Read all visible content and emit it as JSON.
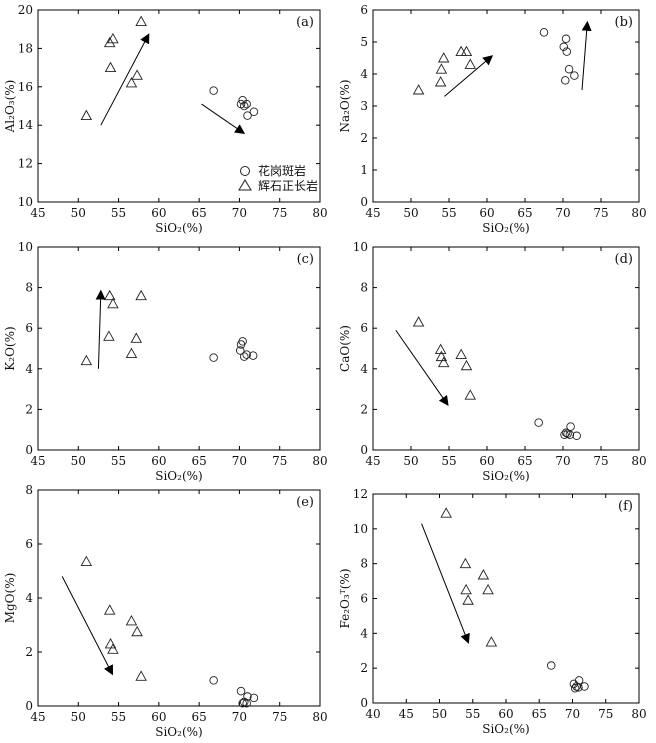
{
  "figure": {
    "legend": {
      "granite_label": "花岗斑岩",
      "syenite_label": "辉石正长岩"
    }
  },
  "chart_data": [
    {
      "type": "scatter",
      "panel_label": "(a)",
      "xlabel": "SiO₂(%)",
      "ylabel": "Al₂O₃(%)",
      "xlim": [
        45,
        80
      ],
      "ylim": [
        10,
        20
      ],
      "xticks": [
        "45",
        "50",
        "55",
        "60",
        "65",
        "70",
        "75",
        "80"
      ],
      "yticks": [
        "10",
        "12",
        "14",
        "16",
        "18",
        "20"
      ],
      "legend_position": "bottom-right",
      "series": [
        {
          "name": "花岗斑岩",
          "marker": "circle",
          "x": [
            66.8,
            70.2,
            70.4,
            70.6,
            70.9,
            71.0,
            71.8
          ],
          "y": [
            15.8,
            15.1,
            15.3,
            15.0,
            15.1,
            14.5,
            14.7
          ]
        },
        {
          "name": "辉石正长岩",
          "marker": "triangle",
          "x": [
            51.0,
            53.9,
            54.0,
            54.3,
            56.6,
            57.3,
            57.8
          ],
          "y": [
            14.5,
            18.3,
            17.0,
            18.5,
            16.2,
            16.6,
            19.4
          ]
        }
      ],
      "arrows": [
        {
          "from": [
            52.8,
            14.0
          ],
          "to": [
            58.7,
            18.7
          ]
        },
        {
          "from": [
            65.3,
            15.1
          ],
          "to": [
            70.5,
            13.6
          ]
        }
      ]
    },
    {
      "type": "scatter",
      "panel_label": "(b)",
      "xlabel": "SiO₂(%)",
      "ylabel": "Na₂O(%)",
      "xlim": [
        45,
        80
      ],
      "ylim": [
        0,
        6
      ],
      "xticks": [
        "45",
        "50",
        "55",
        "60",
        "65",
        "70",
        "75",
        "80"
      ],
      "yticks": [
        "0",
        "1",
        "2",
        "3",
        "4",
        "5",
        "6"
      ],
      "series": [
        {
          "name": "花岗斑岩",
          "marker": "circle",
          "x": [
            67.5,
            70.1,
            70.4,
            70.5,
            70.3,
            70.8,
            71.5
          ],
          "y": [
            5.3,
            4.85,
            5.1,
            4.7,
            3.8,
            4.15,
            3.95
          ]
        },
        {
          "name": "辉石正长岩",
          "marker": "triangle",
          "x": [
            51.0,
            53.9,
            54.0,
            54.3,
            56.6,
            57.3,
            57.8
          ],
          "y": [
            3.5,
            3.75,
            4.15,
            4.5,
            4.7,
            4.7,
            4.3
          ]
        }
      ],
      "arrows": [
        {
          "from": [
            54.4,
            3.3
          ],
          "to": [
            60.6,
            4.55
          ]
        },
        {
          "from": [
            72.5,
            3.5
          ],
          "to": [
            73.2,
            5.6
          ]
        }
      ]
    },
    {
      "type": "scatter",
      "panel_label": "(c)",
      "xlabel": "SiO₂(%)",
      "ylabel": "K₂O(%)",
      "xlim": [
        45,
        80
      ],
      "ylim": [
        0,
        10
      ],
      "xticks": [
        "45",
        "50",
        "55",
        "60",
        "65",
        "70",
        "75",
        "80"
      ],
      "yticks": [
        "0",
        "2",
        "4",
        "6",
        "8",
        "10"
      ],
      "series": [
        {
          "name": "花岗斑岩",
          "marker": "circle",
          "x": [
            66.8,
            70.1,
            70.2,
            70.4,
            70.6,
            70.9,
            71.7
          ],
          "y": [
            4.55,
            4.9,
            5.2,
            5.35,
            4.6,
            4.7,
            4.65
          ]
        },
        {
          "name": "辉石正长岩",
          "marker": "triangle",
          "x": [
            51.0,
            53.8,
            53.9,
            54.3,
            56.6,
            57.2,
            57.8
          ],
          "y": [
            4.4,
            5.6,
            7.6,
            7.2,
            4.75,
            5.5,
            7.6
          ]
        }
      ],
      "arrows": [
        {
          "from": [
            52.5,
            4.0
          ],
          "to": [
            52.8,
            7.8
          ]
        }
      ]
    },
    {
      "type": "scatter",
      "panel_label": "(d)",
      "xlabel": "SiO₂(%)",
      "ylabel": "CaO(%)",
      "xlim": [
        45,
        80
      ],
      "ylim": [
        0,
        10
      ],
      "xticks": [
        "45",
        "50",
        "55",
        "60",
        "65",
        "70",
        "75",
        "80"
      ],
      "yticks": [
        "0",
        "2",
        "4",
        "6",
        "8",
        "10"
      ],
      "series": [
        {
          "name": "花岗斑岩",
          "marker": "circle",
          "x": [
            66.8,
            70.2,
            70.4,
            70.6,
            70.9,
            71.0,
            71.8
          ],
          "y": [
            1.35,
            0.75,
            0.85,
            0.8,
            0.75,
            1.15,
            0.7
          ]
        },
        {
          "name": "辉石正长岩",
          "marker": "triangle",
          "x": [
            51.0,
            53.9,
            54.0,
            54.3,
            56.6,
            57.3,
            57.8
          ],
          "y": [
            6.3,
            4.95,
            4.6,
            4.3,
            4.7,
            4.15,
            2.7
          ]
        }
      ],
      "arrows": [
        {
          "from": [
            48.0,
            5.9
          ],
          "to": [
            54.8,
            2.25
          ]
        }
      ]
    },
    {
      "type": "scatter",
      "panel_label": "(e)",
      "xlabel": "SiO₂(%)",
      "ylabel": "MgO(%)",
      "xlim": [
        45,
        80
      ],
      "ylim": [
        0,
        8
      ],
      "xticks": [
        "45",
        "50",
        "55",
        "60",
        "65",
        "70",
        "75",
        "80"
      ],
      "yticks": [
        "0",
        "2",
        "4",
        "6",
        "8"
      ],
      "series": [
        {
          "name": "花岗斑岩",
          "marker": "circle",
          "x": [
            66.8,
            70.2,
            70.4,
            70.6,
            70.9,
            71.0,
            71.8
          ],
          "y": [
            0.95,
            0.55,
            0.1,
            0.15,
            0.1,
            0.35,
            0.3
          ]
        },
        {
          "name": "辉石正长岩",
          "marker": "triangle",
          "x": [
            51.0,
            53.9,
            54.0,
            54.3,
            56.6,
            57.3,
            57.8
          ],
          "y": [
            5.35,
            3.55,
            2.3,
            2.1,
            3.15,
            2.75,
            1.1
          ]
        }
      ],
      "arrows": [
        {
          "from": [
            48.0,
            4.8
          ],
          "to": [
            54.2,
            1.2
          ]
        }
      ]
    },
    {
      "type": "scatter",
      "panel_label": "(f)",
      "xlabel": "SiO₂(%)",
      "ylabel": "Fe₂O₃ᵀ(%)",
      "xlim": [
        40,
        80
      ],
      "ylim": [
        0,
        12
      ],
      "xticks": [
        "40",
        "45",
        "50",
        "55",
        "60",
        "65",
        "70",
        "75",
        "80"
      ],
      "yticks": [
        "0",
        "2",
        "4",
        "6",
        "8",
        "10",
        "12"
      ],
      "series": [
        {
          "name": "花岗斑岩",
          "marker": "circle",
          "x": [
            66.8,
            70.2,
            70.4,
            70.6,
            70.9,
            71.0,
            71.8
          ],
          "y": [
            2.15,
            1.1,
            0.85,
            0.95,
            0.9,
            1.3,
            0.95
          ]
        },
        {
          "name": "辉石正长岩",
          "marker": "triangle",
          "x": [
            51.0,
            53.9,
            54.0,
            54.3,
            56.6,
            57.3,
            57.8
          ],
          "y": [
            10.9,
            8.0,
            6.5,
            5.9,
            7.35,
            6.5,
            3.5
          ]
        }
      ],
      "arrows": [
        {
          "from": [
            47.3,
            10.3
          ],
          "to": [
            54.3,
            3.5
          ]
        }
      ]
    }
  ]
}
